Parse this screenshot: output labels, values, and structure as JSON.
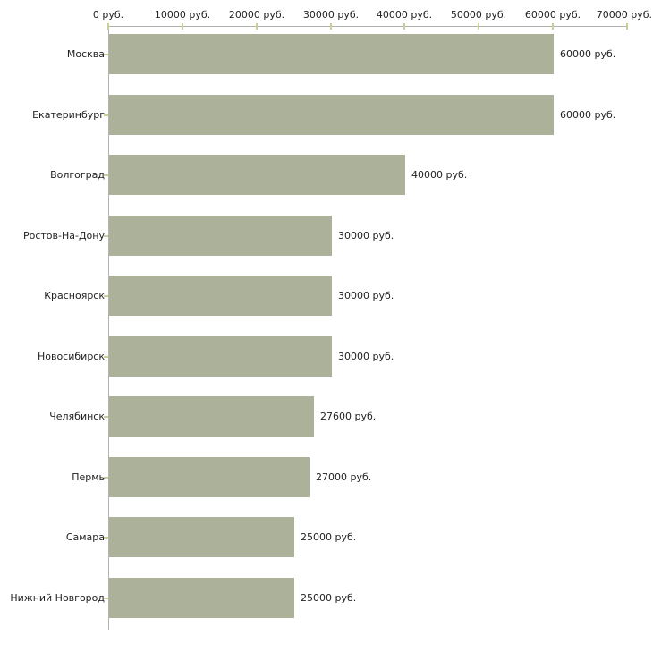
{
  "chart_data": {
    "type": "bar",
    "orientation": "horizontal",
    "title": "",
    "categories": [
      "Москва",
      "Екатеринбург",
      "Волгоград",
      "Ростов-На-Дону",
      "Красноярск",
      "Новосибирск",
      "Челябинск",
      "Пермь",
      "Самара",
      "Нижний Новгород"
    ],
    "values": [
      60000,
      60000,
      40000,
      30000,
      30000,
      30000,
      27600,
      27000,
      25000,
      25000
    ],
    "value_labels": [
      "60000 руб.",
      "60000 руб.",
      "40000 руб.",
      "30000 руб.",
      "30000 руб.",
      "30000 руб.",
      "27600 руб.",
      "27000 руб.",
      "25000 руб.",
      "25000 руб."
    ],
    "unit": "руб.",
    "xlabel": "",
    "ylabel": "",
    "xlim": [
      0,
      70000
    ],
    "x_axis": {
      "position": "top",
      "ticks": [
        0,
        10000,
        20000,
        30000,
        40000,
        50000,
        60000,
        70000
      ],
      "tick_labels": [
        "0 руб.",
        "10000 руб.",
        "20000 руб.",
        "30000 руб.",
        "40000 руб.",
        "50000 руб.",
        "60000 руб.",
        "70000 руб."
      ]
    },
    "grid": false,
    "legend": false,
    "colors": {
      "bar": "#acb199",
      "axis_line": "#b3b3b3",
      "tick_mark": "#cccc99",
      "text": "#222222",
      "background": "#ffffff"
    }
  }
}
